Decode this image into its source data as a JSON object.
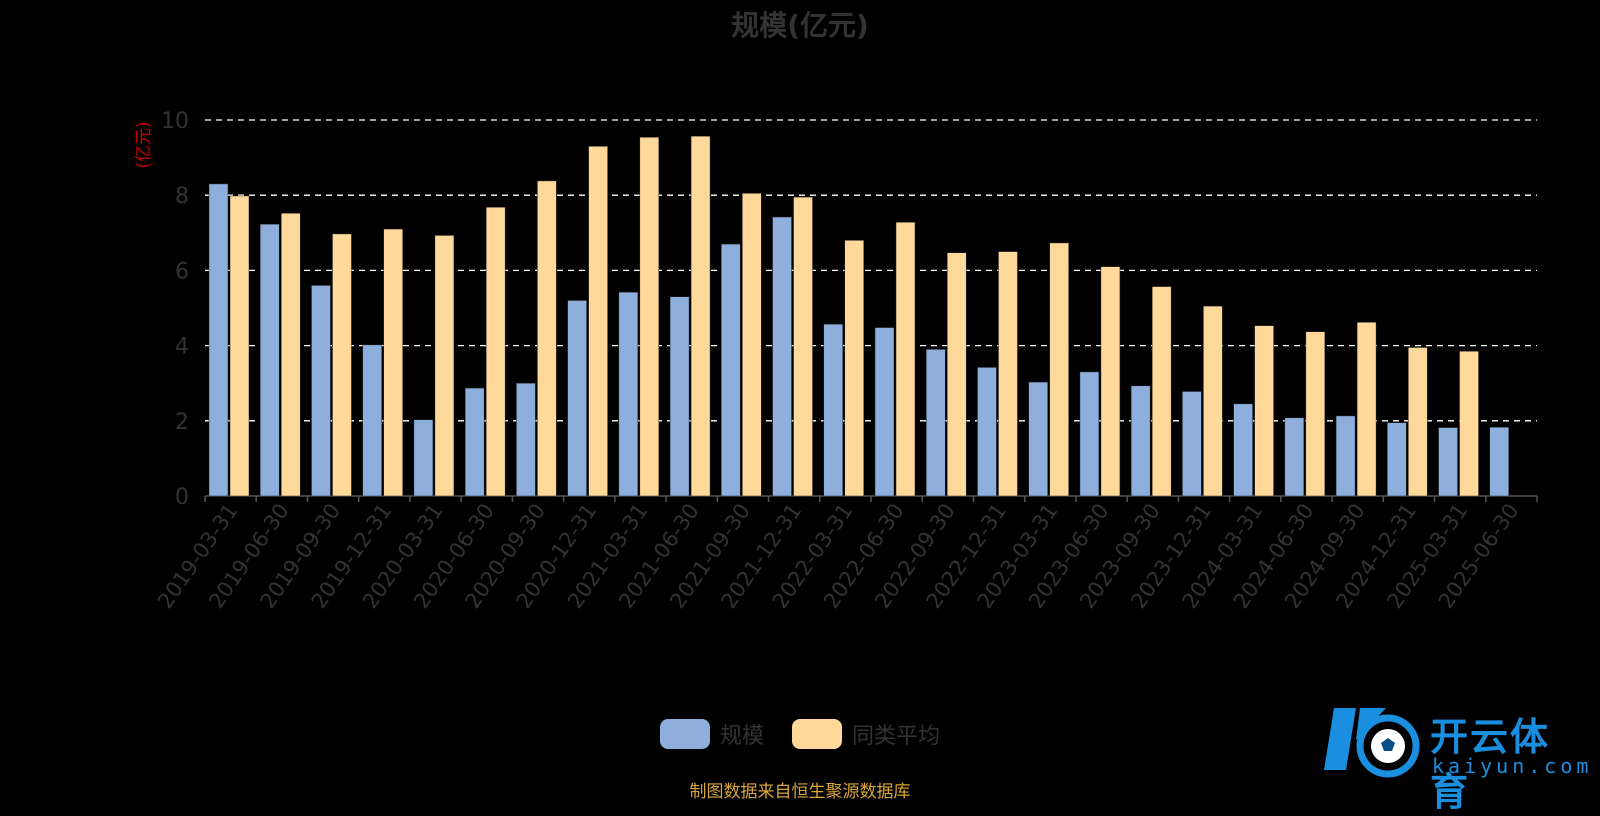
{
  "chart_data": {
    "type": "bar",
    "title": "规模(亿元)",
    "ylabel": "(亿元)",
    "xlabel": "",
    "ylim": [
      0,
      10
    ],
    "yticks": [
      0,
      2,
      4,
      6,
      8,
      10
    ],
    "grid": true,
    "legend_position": "bottom",
    "categories": [
      "2019-03-31",
      "2019-06-30",
      "2019-09-30",
      "2019-12-31",
      "2020-03-31",
      "2020-06-30",
      "2020-09-30",
      "2020-12-31",
      "2021-03-31",
      "2021-06-30",
      "2021-09-30",
      "2021-12-31",
      "2022-03-31",
      "2022-06-30",
      "2022-09-30",
      "2022-12-31",
      "2023-03-31",
      "2023-06-30",
      "2023-09-30",
      "2023-12-31",
      "2024-03-31",
      "2024-06-30",
      "2024-09-30",
      "2024-12-31",
      "2025-03-31",
      "2025-06-30"
    ],
    "series": [
      {
        "name": "规模",
        "color": "#8eaedc",
        "values": [
          8.3,
          7.23,
          5.6,
          4.02,
          2.03,
          2.87,
          3.0,
          5.2,
          5.42,
          5.3,
          6.7,
          7.42,
          4.57,
          4.48,
          3.9,
          3.42,
          3.03,
          3.3,
          2.93,
          2.78,
          2.45,
          2.08,
          2.13,
          1.95,
          1.82,
          1.83
        ]
      },
      {
        "name": "同类平均",
        "color": "#ffd999",
        "values": [
          7.98,
          7.52,
          6.97,
          7.1,
          6.93,
          7.68,
          8.38,
          9.3,
          9.54,
          9.57,
          8.05,
          7.95,
          6.8,
          7.28,
          6.47,
          6.5,
          6.73,
          6.1,
          5.57,
          5.05,
          4.53,
          4.37,
          4.62,
          3.95,
          3.85,
          null
        ]
      }
    ]
  },
  "legend": {
    "items": [
      {
        "label": "规模",
        "color": "#8eaedc"
      },
      {
        "label": "同类平均",
        "color": "#ffd999"
      }
    ]
  },
  "footer": {
    "source": "制图数据来自恒生聚源数据库"
  },
  "logo": {
    "name": "开云体育",
    "sub": "kaiyun.com",
    "icon": "soccer-ball-icon",
    "color": "#1a8fe0"
  },
  "colors": {
    "background": "#000000",
    "axis_text": "#333333",
    "grid": "#ffffff",
    "ylabel": "#cc0000"
  }
}
